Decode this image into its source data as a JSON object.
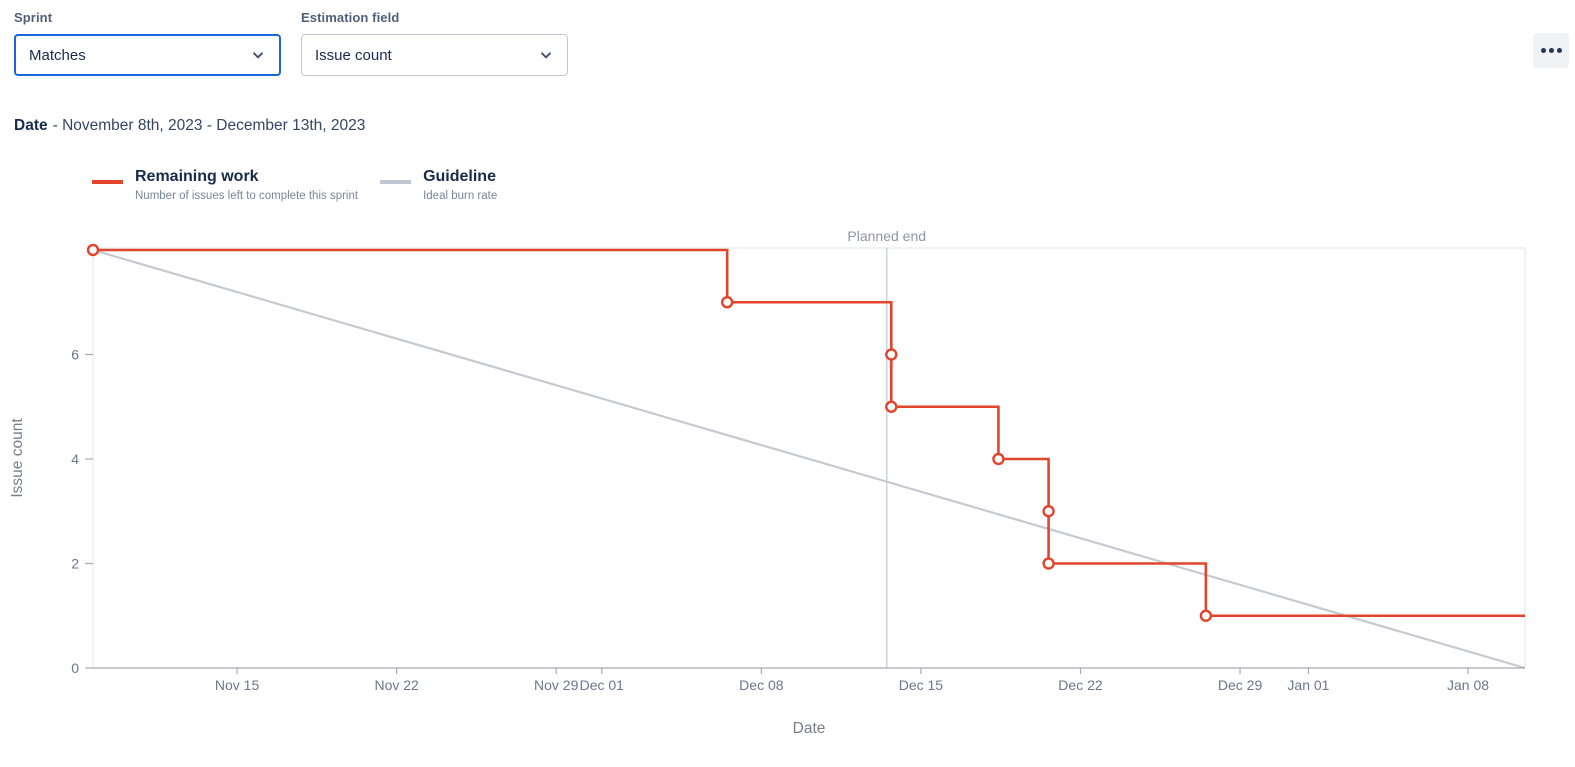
{
  "header": {
    "sprint": {
      "label": "Sprint",
      "value": "Matches"
    },
    "estimation": {
      "label": "Estimation field",
      "value": "Issue count"
    },
    "icons": {
      "select_chevron": "chevron-down",
      "more": "ellipsis-horizontal"
    }
  },
  "date_heading": {
    "label": "Date",
    "value": "- November 8th, 2023 - December 13th, 2023"
  },
  "legend": {
    "items": [
      {
        "title": "Remaining work",
        "subtitle": "Number of issues left to complete this sprint",
        "color": "#E2452C"
      },
      {
        "title": "Guideline",
        "subtitle": "Ideal burn rate",
        "color": "#C1C7D0"
      }
    ]
  },
  "chart_data": {
    "type": "line",
    "subtype": "sprint-burndown-step",
    "xlabel": "Date",
    "ylabel": "Issue count",
    "x_axis": {
      "unit": "days since sprint start (Nov 8, 2023)",
      "domain_days": [
        0.68,
        63.5
      ],
      "ticks": [
        {
          "day": 7,
          "label": "Nov 15"
        },
        {
          "day": 14,
          "label": "Nov 22"
        },
        {
          "day": 21,
          "label": "Nov 29"
        },
        {
          "day": 23,
          "label": "Dec 01"
        },
        {
          "day": 30,
          "label": "Dec 08"
        },
        {
          "day": 37,
          "label": "Dec 15"
        },
        {
          "day": 44,
          "label": "Dec 22"
        },
        {
          "day": 51,
          "label": "Dec 29"
        },
        {
          "day": 54,
          "label": "Jan 01"
        },
        {
          "day": 61,
          "label": "Jan 08"
        }
      ]
    },
    "y_axis": {
      "domain": [
        0,
        8
      ],
      "ticks": [
        0,
        2,
        4,
        6
      ]
    },
    "planned_end": {
      "day": 35.5,
      "label": "Planned end"
    },
    "series": [
      {
        "name": "Remaining work",
        "description": "Number of issues left to complete this sprint",
        "color": "#E2452C",
        "line": "step",
        "points": [
          {
            "day": 0.68,
            "value": 8,
            "marker": true
          },
          {
            "day": 28.5,
            "value": 8,
            "marker": false
          },
          {
            "day": 28.5,
            "value": 7,
            "marker": true
          },
          {
            "day": 35.7,
            "value": 7,
            "marker": false
          },
          {
            "day": 35.7,
            "value": 6,
            "marker": true
          },
          {
            "day": 35.7,
            "value": 5,
            "marker": true
          },
          {
            "day": 40.4,
            "value": 5,
            "marker": false
          },
          {
            "day": 40.4,
            "value": 4,
            "marker": true
          },
          {
            "day": 42.6,
            "value": 4,
            "marker": false
          },
          {
            "day": 42.6,
            "value": 3,
            "marker": true
          },
          {
            "day": 42.6,
            "value": 2,
            "marker": true
          },
          {
            "day": 49.5,
            "value": 2,
            "marker": false
          },
          {
            "day": 49.5,
            "value": 1,
            "marker": true
          },
          {
            "day": 63.5,
            "value": 1,
            "marker": false
          }
        ]
      },
      {
        "name": "Guideline",
        "description": "Ideal burn rate",
        "color": "#C5CAD2",
        "line": "straight",
        "points": [
          {
            "day": 0.68,
            "value": 8,
            "marker": false
          },
          {
            "day": 63.5,
            "value": 0,
            "marker": false
          }
        ]
      }
    ],
    "colors": {
      "remaining_work": "#E2452C",
      "guideline": "#C5CAD2",
      "planned_end_line": "#CFD4DB",
      "planned_end_label": "#8C96A8",
      "plot_border": "#E7E9EC",
      "axis_line": "#A5ABB3",
      "tick_label": "#6B778C",
      "axis_title": "#767E8A",
      "marker_fill": "#FFFFFF"
    }
  }
}
